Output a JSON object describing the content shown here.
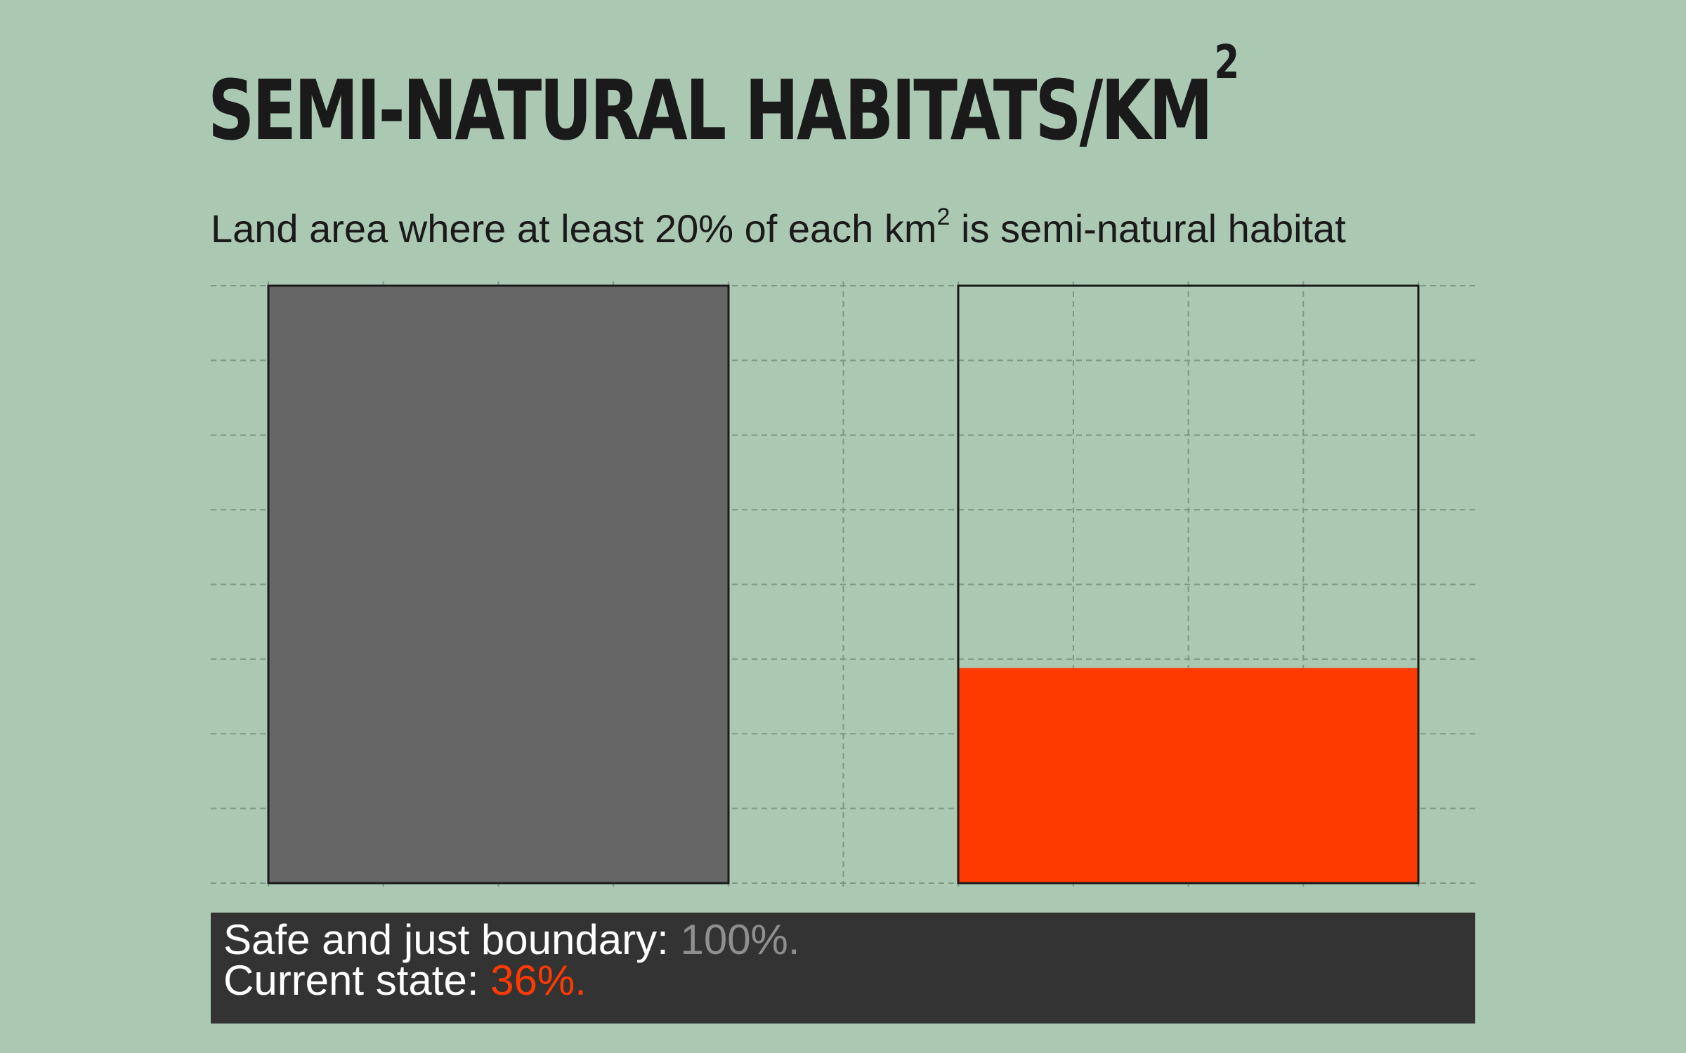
{
  "title": {
    "main": "SEMI-NATURAL HABITATS/KM",
    "superscript": "2"
  },
  "subtitle": {
    "before": "Land area where at least 20% of each ",
    "unit": "km",
    "superscript": "2",
    "after": " is semi-natural habitat"
  },
  "summary": {
    "boundary_label": "Safe and just boundary: ",
    "boundary_value": "100%.",
    "current_label": "Current state: ",
    "current_value": "36%."
  },
  "colors": {
    "background": "#abc8b2",
    "boundary_bar": "#666666",
    "current_bar": "#ff3a00",
    "outline": "#1a1a1a",
    "grid": "#7f9684",
    "summary_background": "#333333",
    "boundary_text": "#8f8f8f",
    "current_text": "#ff3a00"
  },
  "chart_data": {
    "type": "bar",
    "categories": [
      "Safe and just boundary",
      "Current state"
    ],
    "values": [
      100,
      36
    ],
    "ylim": [
      0,
      100
    ],
    "grid": true,
    "xlabel": "",
    "ylabel": ""
  }
}
